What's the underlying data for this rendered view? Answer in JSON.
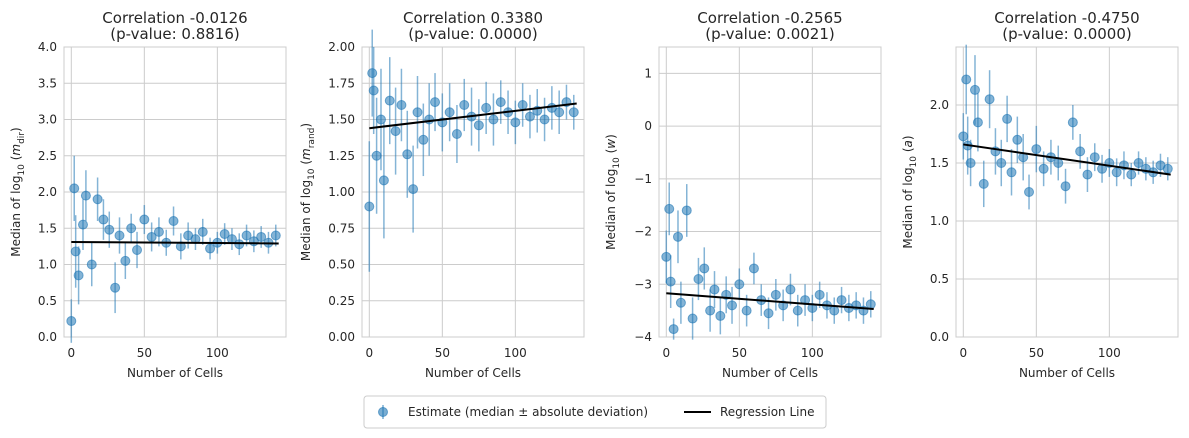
{
  "chart_data": [
    {
      "type": "scatter",
      "title_line1": "Correlation -0.0126",
      "title_line2": "(p-value: 0.8816)",
      "xlabel": "Number of Cells",
      "ylabel_prefix": "Median of log",
      "ylabel_base": "10",
      "ylabel_var": "m",
      "ylabel_sub": "dir",
      "xlim": [
        -5,
        147
      ],
      "ylim": [
        0.0,
        4.0
      ],
      "xticks": [
        0,
        50,
        100
      ],
      "xtick_labels": [
        "0",
        "50",
        "100"
      ],
      "yticks": [
        0.0,
        0.5,
        1.0,
        1.5,
        2.0,
        2.5,
        3.0,
        3.5,
        4.0
      ],
      "ytick_labels": [
        "0.0",
        "0.5",
        "1.0",
        "1.5",
        "2.0",
        "2.5",
        "3.0",
        "3.5",
        "4.0"
      ],
      "regression": {
        "x0": 0,
        "y0": 1.31,
        "x1": 142,
        "y1": 1.29
      },
      "points": {
        "x": [
          0,
          2,
          3,
          5,
          8,
          10,
          14,
          18,
          22,
          26,
          30,
          33,
          37,
          41,
          45,
          50,
          55,
          60,
          65,
          70,
          75,
          80,
          85,
          90,
          95,
          100,
          105,
          110,
          115,
          120,
          125,
          130,
          135,
          140
        ],
        "y": [
          0.22,
          2.05,
          1.18,
          0.85,
          1.55,
          1.95,
          1.0,
          1.9,
          1.62,
          1.48,
          0.68,
          1.4,
          1.05,
          1.5,
          1.2,
          1.62,
          1.38,
          1.45,
          1.3,
          1.6,
          1.25,
          1.4,
          1.35,
          1.45,
          1.22,
          1.3,
          1.42,
          1.35,
          1.28,
          1.4,
          1.32,
          1.38,
          1.3,
          1.4
        ],
        "err": [
          0.3,
          0.45,
          0.5,
          0.4,
          0.35,
          0.35,
          0.3,
          0.3,
          0.28,
          0.25,
          0.35,
          0.25,
          0.25,
          0.2,
          0.25,
          0.2,
          0.2,
          0.2,
          0.18,
          0.2,
          0.18,
          0.18,
          0.15,
          0.18,
          0.15,
          0.15,
          0.15,
          0.15,
          0.15,
          0.15,
          0.15,
          0.15,
          0.15,
          0.15
        ]
      }
    },
    {
      "type": "scatter",
      "title_line1": "Correlation 0.3380",
      "title_line2": "(p-value: 0.0000)",
      "xlabel": "Number of Cells",
      "ylabel_prefix": "Median of log",
      "ylabel_base": "10",
      "ylabel_var": "m",
      "ylabel_sub": "rand",
      "xlim": [
        -5,
        147
      ],
      "ylim": [
        0.0,
        2.0
      ],
      "xticks": [
        0,
        50,
        100
      ],
      "xtick_labels": [
        "0",
        "50",
        "100"
      ],
      "yticks": [
        0.0,
        0.25,
        0.5,
        0.75,
        1.0,
        1.25,
        1.5,
        1.75,
        2.0
      ],
      "ytick_labels": [
        "0.00",
        "0.25",
        "0.50",
        "0.75",
        "1.00",
        "1.25",
        "1.50",
        "1.75",
        "2.00"
      ],
      "regression": {
        "x0": 0,
        "y0": 1.44,
        "x1": 142,
        "y1": 1.61
      },
      "points": {
        "x": [
          0,
          2,
          3,
          5,
          8,
          10,
          14,
          18,
          22,
          26,
          30,
          33,
          37,
          41,
          45,
          50,
          55,
          60,
          65,
          70,
          75,
          80,
          85,
          90,
          95,
          100,
          105,
          110,
          115,
          120,
          125,
          130,
          135,
          140
        ],
        "y": [
          0.9,
          1.82,
          1.7,
          1.25,
          1.5,
          1.08,
          1.63,
          1.42,
          1.6,
          1.26,
          1.02,
          1.55,
          1.36,
          1.5,
          1.62,
          1.48,
          1.55,
          1.4,
          1.6,
          1.52,
          1.46,
          1.58,
          1.5,
          1.62,
          1.55,
          1.48,
          1.6,
          1.52,
          1.56,
          1.5,
          1.58,
          1.55,
          1.62,
          1.55
        ],
        "err": [
          0.45,
          0.3,
          0.3,
          0.4,
          0.35,
          0.4,
          0.3,
          0.3,
          0.25,
          0.3,
          0.3,
          0.25,
          0.25,
          0.25,
          0.2,
          0.2,
          0.2,
          0.2,
          0.18,
          0.2,
          0.18,
          0.18,
          0.18,
          0.15,
          0.15,
          0.15,
          0.15,
          0.15,
          0.15,
          0.15,
          0.15,
          0.15,
          0.12,
          0.12
        ]
      }
    },
    {
      "type": "scatter",
      "title_line1": "Correlation -0.2565",
      "title_line2": "(p-value: 0.0021)",
      "xlabel": "Number of Cells",
      "ylabel_prefix": "Median of log",
      "ylabel_base": "10",
      "ylabel_var": "w",
      "ylabel_sub": "",
      "xlim": [
        -5,
        147
      ],
      "ylim": [
        -4.0,
        1.5
      ],
      "xticks": [
        0,
        50,
        100
      ],
      "xtick_labels": [
        "0",
        "50",
        "100"
      ],
      "yticks": [
        -4,
        -3,
        -2,
        -1,
        0,
        1
      ],
      "ytick_labels": [
        "−4",
        "−3",
        "−2",
        "−1",
        "0",
        "1"
      ],
      "regression": {
        "x0": 0,
        "y0": -3.17,
        "x1": 142,
        "y1": -3.47
      },
      "points": {
        "x": [
          0,
          2,
          3,
          5,
          8,
          10,
          14,
          18,
          22,
          26,
          30,
          33,
          37,
          41,
          45,
          50,
          55,
          60,
          65,
          70,
          75,
          80,
          85,
          90,
          95,
          100,
          105,
          110,
          115,
          120,
          125,
          130,
          135,
          140
        ],
        "y": [
          -2.48,
          -1.57,
          -2.95,
          -3.85,
          -2.1,
          -3.35,
          -1.6,
          -3.65,
          -2.9,
          -2.7,
          -3.5,
          -3.1,
          -3.6,
          -3.2,
          -3.4,
          -3.0,
          -3.5,
          -2.7,
          -3.3,
          -3.55,
          -3.2,
          -3.4,
          -3.1,
          -3.5,
          -3.3,
          -3.45,
          -3.2,
          -3.4,
          -3.5,
          -3.3,
          -3.45,
          -3.4,
          -3.5,
          -3.38
        ],
        "err": [
          0.5,
          0.5,
          0.5,
          0.2,
          0.5,
          0.4,
          0.5,
          0.4,
          0.4,
          0.4,
          0.4,
          0.35,
          0.35,
          0.35,
          0.35,
          0.3,
          0.3,
          0.3,
          0.3,
          0.3,
          0.3,
          0.3,
          0.3,
          0.3,
          0.3,
          0.25,
          0.25,
          0.25,
          0.25,
          0.25,
          0.25,
          0.25,
          0.25,
          0.25
        ]
      }
    },
    {
      "type": "scatter",
      "title_line1": "Correlation -0.4750",
      "title_line2": "(p-value: 0.0000)",
      "xlabel": "Number of Cells",
      "ylabel_prefix": "Median of log",
      "ylabel_base": "10",
      "ylabel_var": "a",
      "ylabel_sub": "",
      "xlim": [
        -5,
        147
      ],
      "ylim": [
        0.0,
        2.5
      ],
      "xticks": [
        0,
        50,
        100
      ],
      "xtick_labels": [
        "0",
        "50",
        "100"
      ],
      "yticks": [
        0.0,
        0.5,
        1.0,
        1.5,
        2.0
      ],
      "ytick_labels": [
        "0.0",
        "0.5",
        "1.0",
        "1.5",
        "2.0"
      ],
      "regression": {
        "x0": 0,
        "y0": 1.66,
        "x1": 142,
        "y1": 1.4
      },
      "points": {
        "x": [
          0,
          2,
          3,
          5,
          8,
          10,
          14,
          18,
          22,
          26,
          30,
          33,
          37,
          41,
          45,
          50,
          55,
          60,
          65,
          70,
          75,
          80,
          85,
          90,
          95,
          100,
          105,
          110,
          115,
          120,
          125,
          130,
          135,
          140
        ],
        "y": [
          1.73,
          2.22,
          1.65,
          1.5,
          2.13,
          1.85,
          1.32,
          2.05,
          1.6,
          1.5,
          1.88,
          1.42,
          1.7,
          1.55,
          1.25,
          1.62,
          1.45,
          1.55,
          1.5,
          1.3,
          1.85,
          1.6,
          1.4,
          1.55,
          1.45,
          1.5,
          1.42,
          1.48,
          1.4,
          1.5,
          1.45,
          1.42,
          1.48,
          1.45
        ],
        "err": [
          0.2,
          0.3,
          0.25,
          0.2,
          0.3,
          0.25,
          0.2,
          0.25,
          0.2,
          0.2,
          0.2,
          0.2,
          0.2,
          0.2,
          0.15,
          0.2,
          0.15,
          0.15,
          0.15,
          0.15,
          0.15,
          0.15,
          0.15,
          0.12,
          0.12,
          0.12,
          0.12,
          0.12,
          0.1,
          0.1,
          0.1,
          0.1,
          0.1,
          0.1
        ]
      }
    }
  ],
  "legend": {
    "placement": "bottom-center",
    "estimate_label": "Estimate (median ± absolute deviation)",
    "regression_label": "Regression Line"
  },
  "colors": {
    "points": "#1f77b4",
    "regression": "#000000",
    "grid": "#cccccc",
    "text": "#262626"
  }
}
